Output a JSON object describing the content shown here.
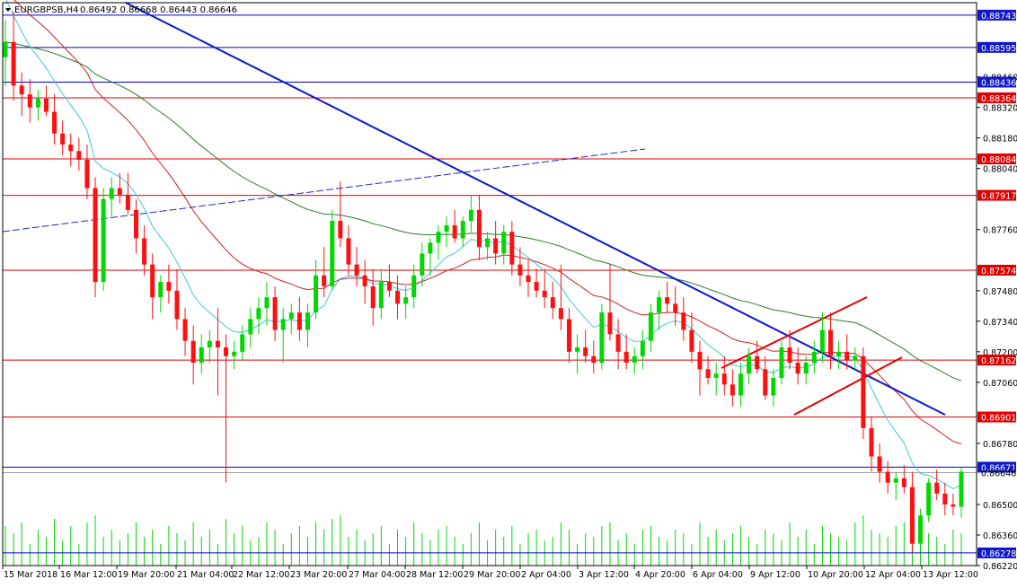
{
  "header": {
    "symbol_tf": "EURGBPSB,H4",
    "ohlc": "0.86492 0.86668 0.86443 0.86646"
  },
  "colors": {
    "bull": "#00d800",
    "bear": "#ff1010",
    "support": "#e00000",
    "blue_level": "#0000c8",
    "badge_red": "#e00000",
    "badge_blue": "#1018c8",
    "ma_fast": "#3cc8e0",
    "ma_mid": "#d22020",
    "ma_slow": "#2a7a2a",
    "trend": "#0a18d0"
  },
  "chart_data": {
    "type": "candlestick",
    "ylim": [
      0.8622,
      0.888
    ],
    "y_ticks": [
      "0.88460",
      "0.88320",
      "0.88180",
      "0.88040",
      "0.87760",
      "0.87480",
      "0.87340",
      "0.87200",
      "0.87060",
      "0.86780",
      "0.86500",
      "0.86360",
      "0.86220"
    ],
    "x_tick_labels": [
      "15 Mar 2018",
      "16 Mar 12:00",
      "19 Mar 20:00",
      "21 Mar 04:00",
      "22 Mar 12:00",
      "23 Mar 20:00",
      "27 Mar 04:00",
      "28 Mar 12:00",
      "29 Mar 20:00",
      "2 Apr 04:00",
      "3 Apr 12:00",
      "4 Apr 20:00",
      "6 Apr 04:00",
      "9 Apr 12:00",
      "10 Apr 20:00",
      "12 Apr 04:00",
      "13 Apr 12:00"
    ],
    "levels": [
      {
        "label": "0.88743",
        "value": 0.88743,
        "kind": "blue"
      },
      {
        "label": "0.88595",
        "value": 0.88595,
        "kind": "blue"
      },
      {
        "label": "0.88436",
        "value": 0.88436,
        "kind": "blue"
      },
      {
        "label": "0.88364",
        "value": 0.88364,
        "kind": "red"
      },
      {
        "label": "0.88084",
        "value": 0.88084,
        "kind": "red"
      },
      {
        "label": "0.87917",
        "value": 0.87917,
        "kind": "red"
      },
      {
        "label": "0.87574",
        "value": 0.87574,
        "kind": "red"
      },
      {
        "label": "0.87162",
        "value": 0.87162,
        "kind": "red"
      },
      {
        "label": "0.86901",
        "value": 0.86901,
        "kind": "red"
      },
      {
        "label": "0.86671",
        "value": 0.86671,
        "kind": "blue"
      },
      {
        "label": "0.86278",
        "value": 0.86278,
        "kind": "blue"
      }
    ],
    "current_price": {
      "label": "0.86646",
      "value": 0.86646
    },
    "candles": [
      [
        0.8855,
        0.8872,
        0.8842,
        0.8862
      ],
      [
        0.8862,
        0.8876,
        0.8835,
        0.8842
      ],
      [
        0.8842,
        0.8848,
        0.8828,
        0.8838
      ],
      [
        0.8838,
        0.8845,
        0.8825,
        0.8832
      ],
      [
        0.8832,
        0.884,
        0.8826,
        0.8836
      ],
      [
        0.8836,
        0.8842,
        0.8828,
        0.883
      ],
      [
        0.883,
        0.8838,
        0.8815,
        0.882
      ],
      [
        0.882,
        0.8826,
        0.881,
        0.8815
      ],
      [
        0.8815,
        0.882,
        0.8805,
        0.8812
      ],
      [
        0.8812,
        0.8818,
        0.8803,
        0.8808
      ],
      [
        0.8808,
        0.8815,
        0.879,
        0.8795
      ],
      [
        0.8795,
        0.88,
        0.8745,
        0.8752
      ],
      [
        0.8752,
        0.8795,
        0.8748,
        0.879
      ],
      [
        0.879,
        0.88,
        0.8782,
        0.8795
      ],
      [
        0.8795,
        0.8802,
        0.8788,
        0.8792
      ],
      [
        0.8792,
        0.8802,
        0.8783,
        0.8785
      ],
      [
        0.8785,
        0.879,
        0.8765,
        0.8772
      ],
      [
        0.8772,
        0.8778,
        0.8755,
        0.876
      ],
      [
        0.876,
        0.8765,
        0.8735,
        0.8745
      ],
      [
        0.8745,
        0.8755,
        0.8738,
        0.8752
      ],
      [
        0.8752,
        0.876,
        0.8742,
        0.8748
      ],
      [
        0.8748,
        0.8758,
        0.873,
        0.8735
      ],
      [
        0.8735,
        0.874,
        0.8718,
        0.8725
      ],
      [
        0.8725,
        0.8732,
        0.8705,
        0.8715
      ],
      [
        0.8715,
        0.8728,
        0.871,
        0.8722
      ],
      [
        0.8722,
        0.873,
        0.8715,
        0.8725
      ],
      [
        0.8725,
        0.874,
        0.87,
        0.8722
      ],
      [
        0.8722,
        0.8728,
        0.866,
        0.8718
      ],
      [
        0.8718,
        0.8725,
        0.8712,
        0.872
      ],
      [
        0.872,
        0.8732,
        0.8716,
        0.8728
      ],
      [
        0.8728,
        0.874,
        0.8722,
        0.8735
      ],
      [
        0.8735,
        0.8745,
        0.8728,
        0.874
      ],
      [
        0.874,
        0.8752,
        0.8732,
        0.8745
      ],
      [
        0.8745,
        0.875,
        0.8725,
        0.873
      ],
      [
        0.873,
        0.874,
        0.8715,
        0.8735
      ],
      [
        0.8735,
        0.8742,
        0.8728,
        0.8738
      ],
      [
        0.8738,
        0.8745,
        0.8725,
        0.873
      ],
      [
        0.873,
        0.8742,
        0.8722,
        0.8738
      ],
      [
        0.8738,
        0.8762,
        0.8735,
        0.8755
      ],
      [
        0.8755,
        0.8768,
        0.8745,
        0.875
      ],
      [
        0.875,
        0.8785,
        0.8748,
        0.878
      ],
      [
        0.878,
        0.8798,
        0.8768,
        0.8772
      ],
      [
        0.8772,
        0.8778,
        0.8755,
        0.876
      ],
      [
        0.876,
        0.8768,
        0.875,
        0.8755
      ],
      [
        0.8755,
        0.8762,
        0.8742,
        0.875
      ],
      [
        0.875,
        0.8758,
        0.8732,
        0.874
      ],
      [
        0.874,
        0.8758,
        0.8735,
        0.8752
      ],
      [
        0.8752,
        0.876,
        0.8745,
        0.8748
      ],
      [
        0.8748,
        0.8755,
        0.8735,
        0.8742
      ],
      [
        0.8742,
        0.875,
        0.8735,
        0.8745
      ],
      [
        0.8745,
        0.876,
        0.874,
        0.8755
      ],
      [
        0.8755,
        0.877,
        0.875,
        0.8765
      ],
      [
        0.8765,
        0.8772,
        0.8755,
        0.877
      ],
      [
        0.877,
        0.8778,
        0.8762,
        0.8775
      ],
      [
        0.8775,
        0.8782,
        0.8768,
        0.8778
      ],
      [
        0.8778,
        0.8785,
        0.877,
        0.8772
      ],
      [
        0.8772,
        0.8782,
        0.8768,
        0.878
      ],
      [
        0.878,
        0.8792,
        0.8775,
        0.8785
      ],
      [
        0.8785,
        0.8792,
        0.8762,
        0.8768
      ],
      [
        0.8768,
        0.8775,
        0.8762,
        0.8772
      ],
      [
        0.8772,
        0.878,
        0.876,
        0.8765
      ],
      [
        0.8765,
        0.8778,
        0.876,
        0.8775
      ],
      [
        0.8775,
        0.878,
        0.8755,
        0.876
      ],
      [
        0.876,
        0.8768,
        0.875,
        0.8755
      ],
      [
        0.8755,
        0.8762,
        0.8745,
        0.8752
      ],
      [
        0.8752,
        0.8758,
        0.8745,
        0.8748
      ],
      [
        0.8748,
        0.8758,
        0.874,
        0.8745
      ],
      [
        0.8745,
        0.8752,
        0.8735,
        0.874
      ],
      [
        0.874,
        0.876,
        0.873,
        0.8735
      ],
      [
        0.8735,
        0.874,
        0.8715,
        0.872
      ],
      [
        0.872,
        0.8728,
        0.871,
        0.8722
      ],
      [
        0.8722,
        0.873,
        0.8715,
        0.8718
      ],
      [
        0.8718,
        0.8725,
        0.871,
        0.8715
      ],
      [
        0.8715,
        0.8742,
        0.8712,
        0.8738
      ],
      [
        0.8738,
        0.876,
        0.8725,
        0.8728
      ],
      [
        0.8728,
        0.8735,
        0.8712,
        0.872
      ],
      [
        0.872,
        0.8728,
        0.8712,
        0.8715
      ],
      [
        0.8715,
        0.8722,
        0.871,
        0.8718
      ],
      [
        0.8718,
        0.873,
        0.8712,
        0.8725
      ],
      [
        0.8725,
        0.8742,
        0.872,
        0.8738
      ],
      [
        0.8738,
        0.8748,
        0.873,
        0.8745
      ],
      [
        0.8745,
        0.8752,
        0.8738,
        0.8742
      ],
      [
        0.8742,
        0.875,
        0.8732,
        0.8738
      ],
      [
        0.8738,
        0.8745,
        0.8725,
        0.873
      ],
      [
        0.873,
        0.8738,
        0.8715,
        0.872
      ],
      [
        0.872,
        0.8725,
        0.87,
        0.8712
      ],
      [
        0.8712,
        0.8718,
        0.8705,
        0.8708
      ],
      [
        0.8708,
        0.8715,
        0.87,
        0.871
      ],
      [
        0.871,
        0.8718,
        0.87,
        0.8705
      ],
      [
        0.8705,
        0.8712,
        0.8695,
        0.87
      ],
      [
        0.87,
        0.8715,
        0.8695,
        0.871
      ],
      [
        0.871,
        0.8722,
        0.8705,
        0.8718
      ],
      [
        0.8718,
        0.8725,
        0.871,
        0.8712
      ],
      [
        0.8712,
        0.8718,
        0.8698,
        0.87
      ],
      [
        0.87,
        0.8712,
        0.8695,
        0.8708
      ],
      [
        0.8708,
        0.8725,
        0.8705,
        0.8722
      ],
      [
        0.8722,
        0.873,
        0.8712,
        0.8715
      ],
      [
        0.8715,
        0.8722,
        0.8705,
        0.871
      ],
      [
        0.871,
        0.8718,
        0.8705,
        0.8715
      ],
      [
        0.8715,
        0.8725,
        0.871,
        0.872
      ],
      [
        0.872,
        0.8738,
        0.8715,
        0.873
      ],
      [
        0.873,
        0.8738,
        0.8712,
        0.8718
      ],
      [
        0.8718,
        0.8725,
        0.8712,
        0.872
      ],
      [
        0.872,
        0.8728,
        0.8712,
        0.8716
      ],
      [
        0.8716,
        0.8722,
        0.8712,
        0.8718
      ],
      [
        0.8718,
        0.8722,
        0.868,
        0.8685
      ],
      [
        0.8685,
        0.869,
        0.8665,
        0.8672
      ],
      [
        0.8672,
        0.8678,
        0.866,
        0.8665
      ],
      [
        0.8665,
        0.867,
        0.8655,
        0.866
      ],
      [
        0.866,
        0.8665,
        0.8652,
        0.8662
      ],
      [
        0.8662,
        0.8668,
        0.8655,
        0.8658
      ],
      [
        0.8658,
        0.8665,
        0.8628,
        0.8632
      ],
      [
        0.8632,
        0.8648,
        0.8628,
        0.8645
      ],
      [
        0.8645,
        0.8662,
        0.8642,
        0.866
      ],
      [
        0.866,
        0.8666,
        0.8652,
        0.8655
      ],
      [
        0.8655,
        0.866,
        0.8645,
        0.865
      ],
      [
        0.865,
        0.8655,
        0.8645,
        0.8649
      ],
      [
        0.8649,
        0.8667,
        0.8644,
        0.8665
      ]
    ],
    "volumes": [
      0.55,
      0.45,
      0.6,
      0.3,
      0.5,
      0.4,
      0.65,
      0.35,
      0.55,
      0.3,
      0.6,
      0.7,
      0.4,
      0.5,
      0.35,
      0.45,
      0.6,
      0.4,
      0.5,
      0.3,
      0.55,
      0.45,
      0.35,
      0.6,
      0.4,
      0.5,
      0.3,
      0.65,
      0.45,
      0.55,
      0.35,
      0.4,
      0.6,
      0.5,
      0.3,
      0.45,
      0.55,
      0.4,
      0.6,
      0.5,
      0.65,
      0.7,
      0.4,
      0.5,
      0.35,
      0.45,
      0.55,
      0.3,
      0.5,
      0.4,
      0.6,
      0.45,
      0.35,
      0.5,
      0.55,
      0.4,
      0.3,
      0.45,
      0.6,
      0.35,
      0.5,
      0.4,
      0.55,
      0.3,
      0.45,
      0.5,
      0.35,
      0.4,
      0.6,
      0.5,
      0.3,
      0.45,
      0.4,
      0.55,
      0.6,
      0.35,
      0.45,
      0.3,
      0.5,
      0.55,
      0.4,
      0.35,
      0.5,
      0.45,
      0.3,
      0.6,
      0.4,
      0.5,
      0.35,
      0.45,
      0.55,
      0.4,
      0.3,
      0.5,
      0.45,
      0.35,
      0.6,
      0.4,
      0.5,
      0.3,
      0.55,
      0.45,
      0.4,
      0.35,
      0.6,
      0.7,
      0.5,
      0.45,
      0.4,
      0.55,
      0.6,
      0.35,
      0.5,
      0.45,
      0.4,
      0.3,
      0.5,
      0.45
    ]
  }
}
